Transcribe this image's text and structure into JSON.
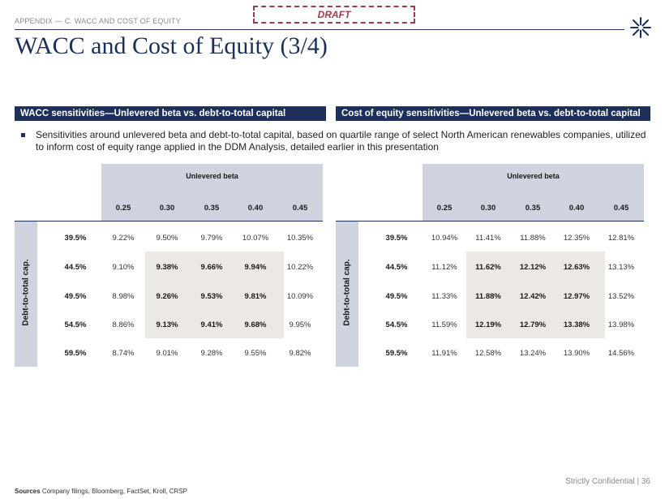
{
  "header": {
    "breadcrumb": "APPENDIX — C. WACC AND COST OF EQUITY",
    "draft_stamp": "DRAFT",
    "title": "WACC and Cost of Equity (3/4)"
  },
  "sections": {
    "left_title": "WACC sensitivities—Unlevered beta vs. debt-to-total capital",
    "right_title": "Cost of equity sensitivities—Unlevered beta vs. debt-to-total capital"
  },
  "bullet": "Sensitivities around unlevered beta and debt-to-total capital, based on quartile range of select North American renewables companies, utilized to inform cost of equity range applied in the DDM Analysis, detailed earlier in this presentation",
  "tables": {
    "wacc": {
      "col_header_title": "Unlevered beta",
      "row_header_title": "Debt-to-total cap.",
      "columns": [
        "0.25",
        "0.30",
        "0.35",
        "0.40",
        "0.45"
      ],
      "rows": [
        {
          "label": "39.5%",
          "values": [
            "9.22%",
            "9.50%",
            "9.79%",
            "10.07%",
            "10.35%"
          ]
        },
        {
          "label": "44.5%",
          "values": [
            "9.10%",
            "9.38%",
            "9.66%",
            "9.94%",
            "10.22%"
          ]
        },
        {
          "label": "49.5%",
          "values": [
            "8.98%",
            "9.26%",
            "9.53%",
            "9.81%",
            "10.09%"
          ]
        },
        {
          "label": "54.5%",
          "values": [
            "8.86%",
            "9.13%",
            "9.41%",
            "9.68%",
            "9.95%"
          ]
        },
        {
          "label": "59.5%",
          "values": [
            "8.74%",
            "9.01%",
            "9.28%",
            "9.55%",
            "9.82%"
          ]
        }
      ]
    },
    "cost_of_equity": {
      "col_header_title": "Unlevered beta",
      "row_header_title": "Debt-to-total cap.",
      "columns": [
        "0.25",
        "0.30",
        "0.35",
        "0.40",
        "0.45"
      ],
      "rows": [
        {
          "label": "39.5%",
          "values": [
            "10.94%",
            "11.41%",
            "11.88%",
            "12.35%",
            "12.81%"
          ]
        },
        {
          "label": "44.5%",
          "values": [
            "11.12%",
            "11.62%",
            "12.12%",
            "12.63%",
            "13.13%"
          ]
        },
        {
          "label": "49.5%",
          "values": [
            "11.33%",
            "11.88%",
            "12.42%",
            "12.97%",
            "13.52%"
          ]
        },
        {
          "label": "54.5%",
          "values": [
            "11.59%",
            "12.19%",
            "12.79%",
            "13.38%",
            "13.98%"
          ]
        },
        {
          "label": "59.5%",
          "values": [
            "11.91%",
            "12.58%",
            "13.24%",
            "13.90%",
            "14.56%"
          ]
        }
      ]
    }
  },
  "footer": {
    "confidential": "Strictly Confidential | 36",
    "sources_label": "Sources",
    "sources_text": "Company filings, Bloomberg, FactSet, Kroll, CRSP"
  },
  "colors": {
    "navy": "#1d2f5a",
    "draft_red": "#a23b48",
    "header_band": "#ced3df",
    "highlight": "#ece8e3"
  },
  "icons": {
    "logo": "starburst-logo-icon"
  }
}
